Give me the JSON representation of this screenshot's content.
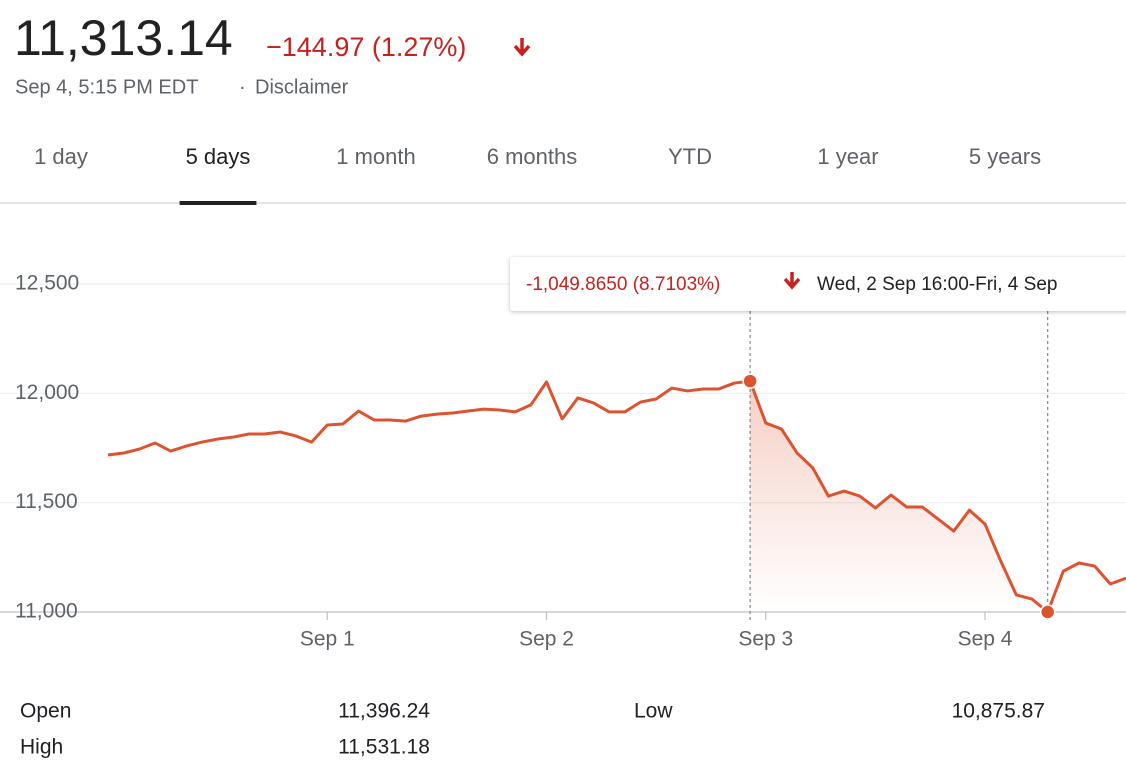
{
  "header": {
    "price": "11,313.14",
    "change": "−144.97 (1.27%)",
    "timestamp": "Sep 4, 5:15 PM EDT",
    "separator": "·",
    "disclaimer": "Disclaimer"
  },
  "tabs": [
    "1 day",
    "5 days",
    "1 month",
    "6 months",
    "YTD",
    "1 year",
    "5 years"
  ],
  "selected_tab": 1,
  "tooltip": {
    "change": "-1,049.8650 (8.7103%)",
    "range": "Wed, 2 Sep 16:00-Fri, 4 Sep"
  },
  "chart_data": {
    "type": "line",
    "color": "#dd5330",
    "grid": true,
    "categories": [
      null,
      null,
      null,
      null,
      null,
      null,
      null,
      null,
      null,
      null,
      null,
      null,
      null,
      null,
      "Sep 1",
      null,
      null,
      null,
      null,
      null,
      null,
      null,
      null,
      null,
      null,
      null,
      null,
      null,
      "Sep 2",
      null,
      null,
      null,
      null,
      null,
      null,
      null,
      null,
      null,
      null,
      null,
      null,
      null,
      "Sep 3",
      null,
      null,
      null,
      null,
      null,
      null,
      null,
      null,
      null,
      null,
      null,
      null,
      null,
      "Sep 4",
      null,
      null,
      null,
      null,
      null,
      null,
      null,
      null,
      null
    ],
    "values": [
      11718,
      11727,
      11745,
      11773,
      11736,
      11759,
      11777,
      11791,
      11800,
      11814,
      11814,
      11823,
      11805,
      11777,
      11855,
      11860,
      11919,
      11878,
      11878,
      11873,
      11896,
      11905,
      11910,
      11919,
      11928,
      11924,
      11915,
      11947,
      12052,
      11883,
      11979,
      11956,
      11915,
      11915,
      11960,
      11974,
      12024,
      12011,
      12020,
      12020,
      12047,
      12056,
      11864,
      11837,
      11727,
      11659,
      11530,
      11553,
      11530,
      11476,
      11535,
      11480,
      11480,
      11425,
      11370,
      11466,
      11402,
      11233,
      11078,
      11059,
      11000,
      11187,
      11224,
      11210,
      11128,
      11155
    ],
    "selection": [
      41,
      60
    ],
    "ylim": [
      11000,
      12500
    ],
    "yticks": [
      {
        "value": 11000,
        "label": "11,000"
      },
      {
        "value": 11500,
        "label": "11,500"
      },
      {
        "value": 12000,
        "label": "12,000"
      },
      {
        "value": 12500,
        "label": "12,500"
      }
    ]
  },
  "stats": [
    {
      "label": "Open",
      "value": "11,396.24"
    },
    {
      "label": "High",
      "value": "11,531.18"
    },
    {
      "label": "Low",
      "value": "10,875.87"
    }
  ]
}
